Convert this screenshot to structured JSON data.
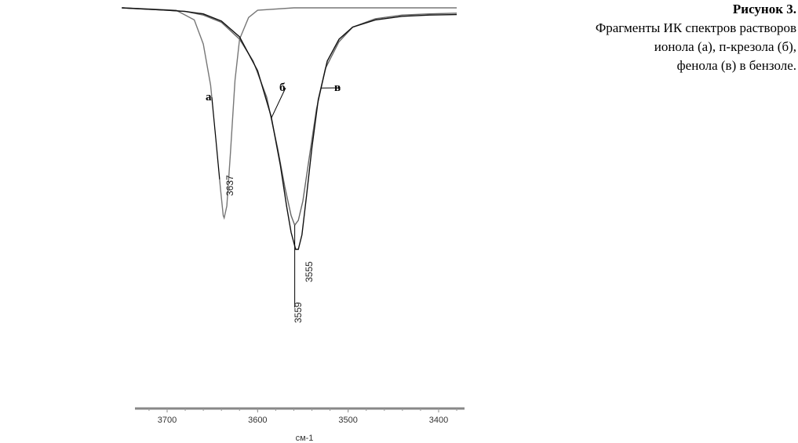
{
  "figure": {
    "title": "Рисунок 3.",
    "caption_lines": [
      "Фрагменты ИК спектров растворов",
      "ионола (а), п-крезола (б),",
      "фенола (в) в бензоле."
    ]
  },
  "chart_data": {
    "type": "line",
    "xlabel": "см-1",
    "ylabel": "",
    "x_ticks": [
      "3700",
      "3600",
      "3500",
      "3400"
    ],
    "xlim": [
      3750,
      3380
    ],
    "x_reversed": true,
    "grid": false,
    "series": [
      {
        "name": "а",
        "color": "#777777",
        "peak_label": "3637",
        "points": [
          [
            3750,
            1.0
          ],
          [
            3720,
            0.995
          ],
          [
            3690,
            0.99
          ],
          [
            3670,
            0.95
          ],
          [
            3660,
            0.85
          ],
          [
            3652,
            0.68
          ],
          [
            3646,
            0.45
          ],
          [
            3641,
            0.25
          ],
          [
            3638,
            0.14
          ],
          [
            3637,
            0.13
          ],
          [
            3634,
            0.18
          ],
          [
            3630,
            0.4
          ],
          [
            3625,
            0.7
          ],
          [
            3620,
            0.87
          ],
          [
            3610,
            0.96
          ],
          [
            3600,
            0.99
          ],
          [
            3560,
            1.0
          ],
          [
            3500,
            1.0
          ],
          [
            3380,
            1.0
          ]
        ]
      },
      {
        "name": "б",
        "color": "#666666",
        "peak_label": "3559",
        "points": [
          [
            3750,
            1.0
          ],
          [
            3700,
            0.99
          ],
          [
            3680,
            0.985
          ],
          [
            3660,
            0.97
          ],
          [
            3640,
            0.94
          ],
          [
            3620,
            0.87
          ],
          [
            3605,
            0.78
          ],
          [
            3590,
            0.63
          ],
          [
            3578,
            0.42
          ],
          [
            3570,
            0.26
          ],
          [
            3563,
            0.14
          ],
          [
            3559,
            0.1
          ],
          [
            3555,
            0.12
          ],
          [
            3550,
            0.2
          ],
          [
            3543,
            0.38
          ],
          [
            3535,
            0.58
          ],
          [
            3525,
            0.75
          ],
          [
            3510,
            0.86
          ],
          [
            3495,
            0.92
          ],
          [
            3470,
            0.955
          ],
          [
            3440,
            0.97
          ],
          [
            3410,
            0.975
          ],
          [
            3380,
            0.978
          ]
        ]
      },
      {
        "name": "в",
        "color": "#111111",
        "peak_label": "3555",
        "points": [
          [
            3750,
            1.0
          ],
          [
            3700,
            0.99
          ],
          [
            3680,
            0.985
          ],
          [
            3660,
            0.975
          ],
          [
            3640,
            0.945
          ],
          [
            3620,
            0.88
          ],
          [
            3600,
            0.74
          ],
          [
            3585,
            0.55
          ],
          [
            3575,
            0.35
          ],
          [
            3568,
            0.18
          ],
          [
            3563,
            0.07
          ],
          [
            3558,
            0.0
          ],
          [
            3555,
            0.0
          ],
          [
            3551,
            0.06
          ],
          [
            3546,
            0.22
          ],
          [
            3540,
            0.42
          ],
          [
            3533,
            0.62
          ],
          [
            3523,
            0.78
          ],
          [
            3510,
            0.87
          ],
          [
            3495,
            0.92
          ],
          [
            3470,
            0.95
          ],
          [
            3440,
            0.965
          ],
          [
            3410,
            0.97
          ],
          [
            3380,
            0.972
          ]
        ]
      }
    ]
  }
}
